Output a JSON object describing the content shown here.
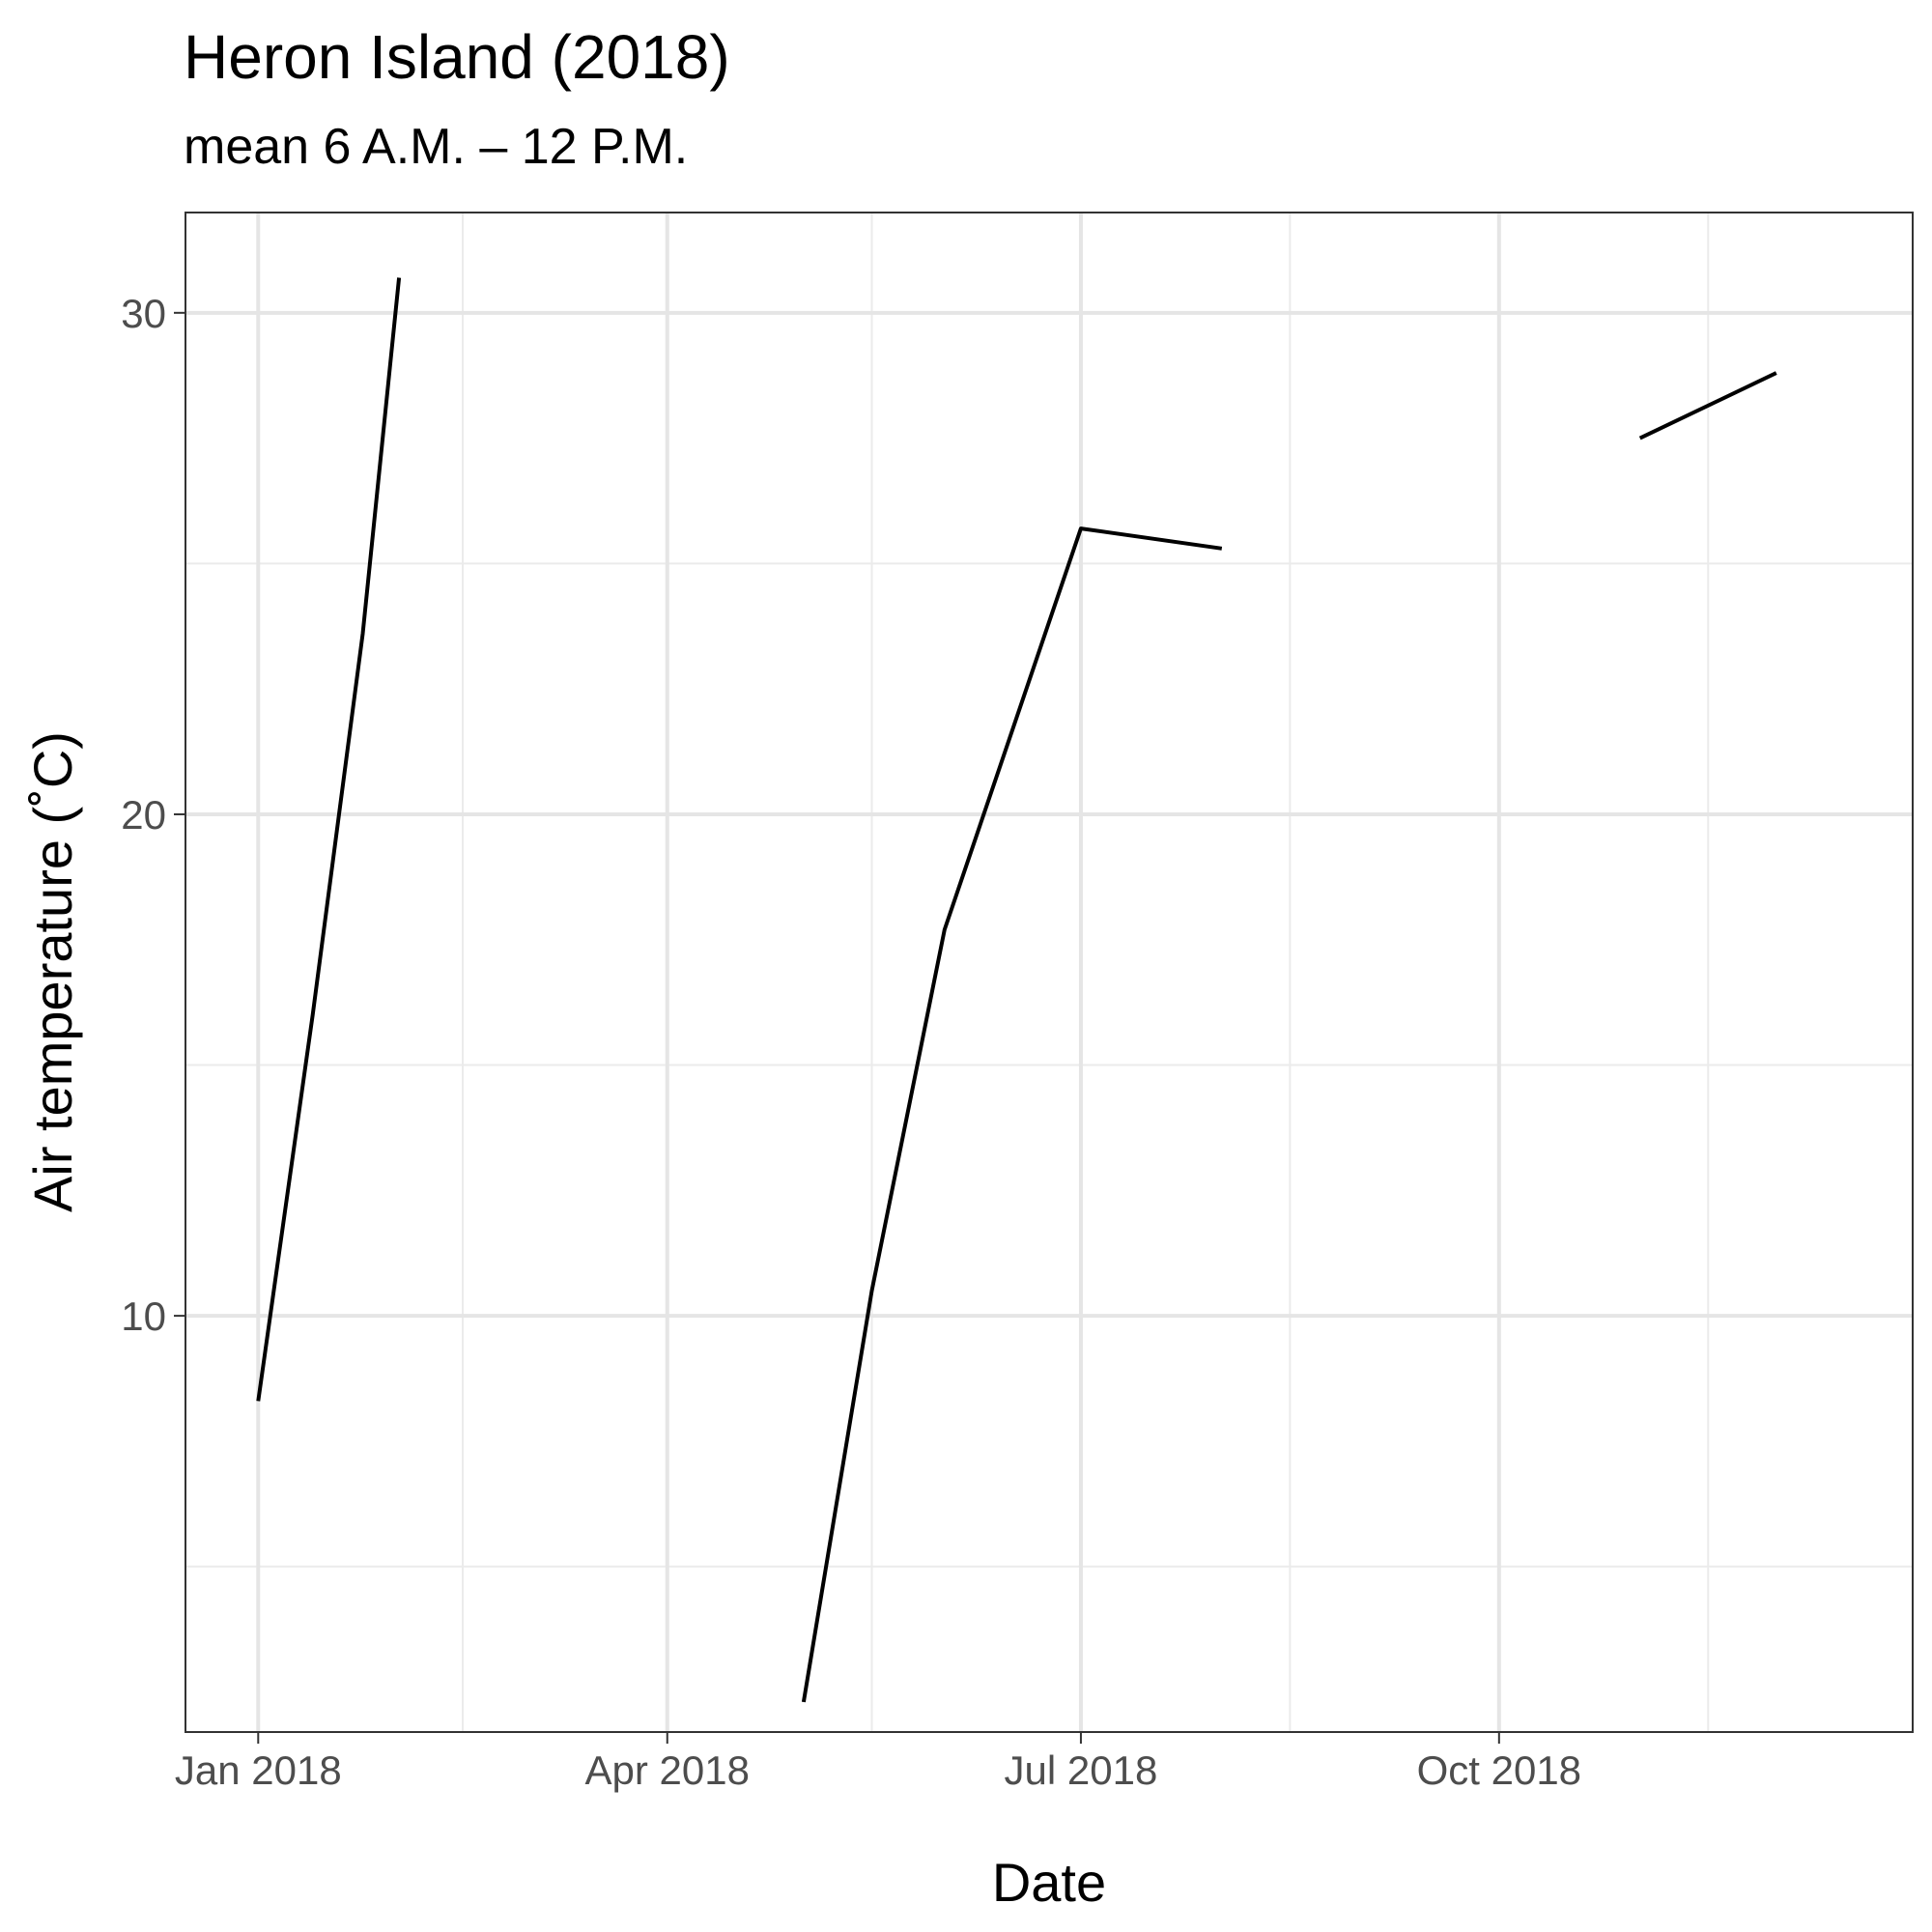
{
  "chart_data": {
    "type": "line",
    "title": "Heron Island (2018)",
    "subtitle": "mean 6 A.M. – 12 P.M.",
    "xlabel": "Date",
    "ylabel": "Air temperature (˚C)",
    "x_ticks": [
      {
        "date": "2018-01-01",
        "label": "Jan 2018"
      },
      {
        "date": "2018-04-01",
        "label": "Apr 2018"
      },
      {
        "date": "2018-07-01",
        "label": "Jul 2018"
      },
      {
        "date": "2018-10-01",
        "label": "Oct 2018"
      }
    ],
    "x_minor_ticks": [
      "2018-02-15",
      "2018-05-16",
      "2018-08-16",
      "2018-11-16"
    ],
    "y_ticks": [
      10,
      20,
      30
    ],
    "y_minor_ticks": [
      5,
      15,
      25
    ],
    "xlim": [
      "2017-12-16",
      "2018-12-31"
    ],
    "ylim": [
      1.7,
      32.0
    ],
    "grid": true,
    "line_color": "#000000",
    "series": [
      {
        "segments": [
          [
            {
              "x": "2018-01-01",
              "y": 8.3
            },
            {
              "x": "2018-01-13",
              "y": 16.0
            },
            {
              "x": "2018-01-24",
              "y": 23.6
            },
            {
              "x": "2018-02-01",
              "y": 30.7
            }
          ],
          [
            {
              "x": "2018-05-01",
              "y": 2.3
            },
            {
              "x": "2018-05-16",
              "y": 10.5
            },
            {
              "x": "2018-06-01",
              "y": 17.7
            },
            {
              "x": "2018-07-01",
              "y": 25.7
            },
            {
              "x": "2018-08-01",
              "y": 25.3
            }
          ],
          [
            {
              "x": "2018-11-01",
              "y": 27.5
            },
            {
              "x": "2018-12-01",
              "y": 28.8
            }
          ]
        ]
      }
    ]
  }
}
